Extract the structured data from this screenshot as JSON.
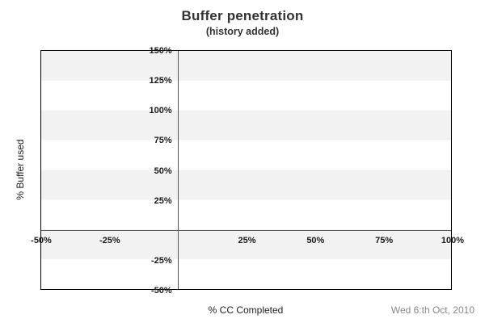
{
  "header": {
    "title": "Buffer penetration",
    "subtitle": "(history added)"
  },
  "chart_data": {
    "type": "line",
    "title": "Buffer penetration",
    "subtitle": "(history added)",
    "xlabel": "% CC Completed",
    "ylabel": "% Buffer used",
    "xlim": [
      -50,
      100
    ],
    "ylim": [
      -50,
      150
    ],
    "x_ticks": [
      {
        "value": -50,
        "label": "-50%"
      },
      {
        "value": -25,
        "label": "-25%"
      },
      {
        "value": 25,
        "label": "25%"
      },
      {
        "value": 50,
        "label": "50%"
      },
      {
        "value": 75,
        "label": "75%"
      },
      {
        "value": 100,
        "label": "100%"
      }
    ],
    "y_ticks": [
      {
        "value": 150,
        "label": "150%"
      },
      {
        "value": 125,
        "label": "125%"
      },
      {
        "value": 100,
        "label": "100%"
      },
      {
        "value": 75,
        "label": "75%"
      },
      {
        "value": 50,
        "label": "50%"
      },
      {
        "value": 25,
        "label": "25%"
      },
      {
        "value": -25,
        "label": "-25%"
      },
      {
        "value": -50,
        "label": "-50%"
      }
    ],
    "zero_axis_x": 0,
    "zero_axis_y": 0,
    "band_step": 25,
    "grid": "alternating horizontal bands every 25%, no gridlines",
    "legend": "none",
    "series": []
  },
  "footer": {
    "date_label": "Wed 6:th Oct, 2010"
  },
  "colors": {
    "band_gray": "#f2f2f2",
    "plot_border": "#000000",
    "axis_line": "#555555",
    "tick_text": "#1a1a1a",
    "title_text": "#333333",
    "date_text": "#888888",
    "background": "#ffffff"
  }
}
